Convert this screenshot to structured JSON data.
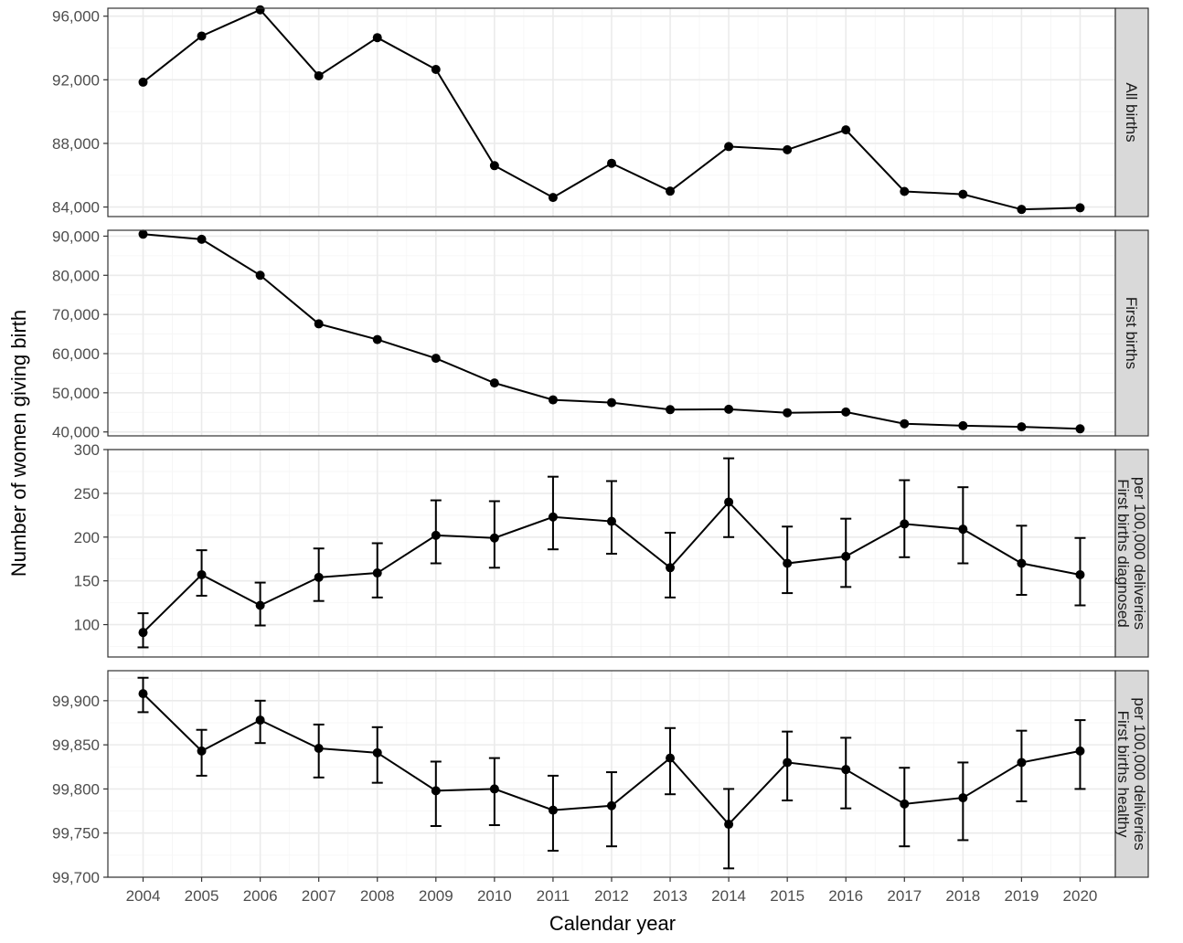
{
  "chart_data": {
    "type": "line",
    "xlabel": "Calendar year",
    "ylabel": "Number of women giving birth",
    "x": [
      2004,
      2005,
      2006,
      2007,
      2008,
      2009,
      2010,
      2011,
      2012,
      2013,
      2014,
      2015,
      2016,
      2017,
      2018,
      2019,
      2020
    ],
    "x_tick_labels": [
      "2004",
      "2005",
      "2006",
      "2007",
      "2008",
      "2009",
      "2010",
      "2011",
      "2012",
      "2013",
      "2014",
      "2015",
      "2016",
      "2017",
      "2018",
      "2019",
      "2020"
    ],
    "grid": true,
    "colors": {
      "line": "#000000",
      "panel_border": "#333333",
      "grid_major": "#ebebeb",
      "grid_minor": "#f5f5f5",
      "strip_fill": "#d9d9d9"
    },
    "panels": [
      {
        "strip": [
          "All births"
        ],
        "ylim": [
          83400,
          96500
        ],
        "y_ticks": [
          84000,
          88000,
          92000,
          96000
        ],
        "y_tick_labels": [
          "84,000",
          "88,000",
          "92,000",
          "96,000"
        ],
        "values": [
          91850,
          94750,
          96400,
          92250,
          94650,
          92650,
          86600,
          84600,
          86750,
          85000,
          87800,
          87600,
          88850,
          84980,
          84800,
          83850,
          83950
        ]
      },
      {
        "strip": [
          "First births"
        ],
        "ylim": [
          39000,
          91500
        ],
        "y_ticks": [
          40000,
          50000,
          60000,
          70000,
          80000,
          90000
        ],
        "y_tick_labels": [
          "40,000",
          "50,000",
          "60,000",
          "70,000",
          "80,000",
          "90,000"
        ],
        "values": [
          90500,
          89200,
          80000,
          67600,
          63600,
          58800,
          52500,
          48200,
          47500,
          45700,
          45800,
          44900,
          45100,
          42100,
          41600,
          41300,
          40800
        ]
      },
      {
        "strip": [
          "First births diagnosed",
          "per 100,000 deliveries"
        ],
        "ylim": [
          63,
          300
        ],
        "y_ticks": [
          100,
          150,
          200,
          250,
          300
        ],
        "y_tick_labels": [
          "100",
          "150",
          "200",
          "250",
          "300"
        ],
        "values": [
          91,
          157,
          122,
          154,
          159,
          202,
          199,
          223,
          218,
          165,
          240,
          170,
          178,
          215,
          209,
          170,
          157
        ],
        "lower": [
          74,
          133,
          99,
          127,
          131,
          170,
          165,
          186,
          181,
          131,
          200,
          136,
          143,
          177,
          170,
          134,
          122
        ],
        "upper": [
          113,
          185,
          148,
          187,
          193,
          242,
          241,
          269,
          264,
          205,
          290,
          212,
          221,
          265,
          257,
          213,
          199
        ]
      },
      {
        "strip": [
          "First births healthy",
          "per 100,000 deliveries"
        ],
        "ylim": [
          99700,
          99934
        ],
        "y_ticks": [
          99700,
          99750,
          99800,
          99850,
          99900
        ],
        "y_tick_labels": [
          "99,700",
          "99,750",
          "99,800",
          "99,850",
          "99,900"
        ],
        "values": [
          99908,
          99843,
          99878,
          99846,
          99841,
          99798,
          99800,
          99776,
          99781,
          99835,
          99760,
          99830,
          99822,
          99783,
          99790,
          99830,
          99843
        ],
        "lower": [
          99887,
          99815,
          99852,
          99813,
          99807,
          99758,
          99759,
          99730,
          99735,
          99794,
          99710,
          99787,
          99778,
          99735,
          99742,
          99786,
          99800
        ],
        "upper": [
          99926,
          99867,
          99900,
          99873,
          99870,
          99831,
          99835,
          99815,
          99819,
          99869,
          99800,
          99865,
          99858,
          99824,
          99830,
          99866,
          99878
        ]
      }
    ]
  }
}
